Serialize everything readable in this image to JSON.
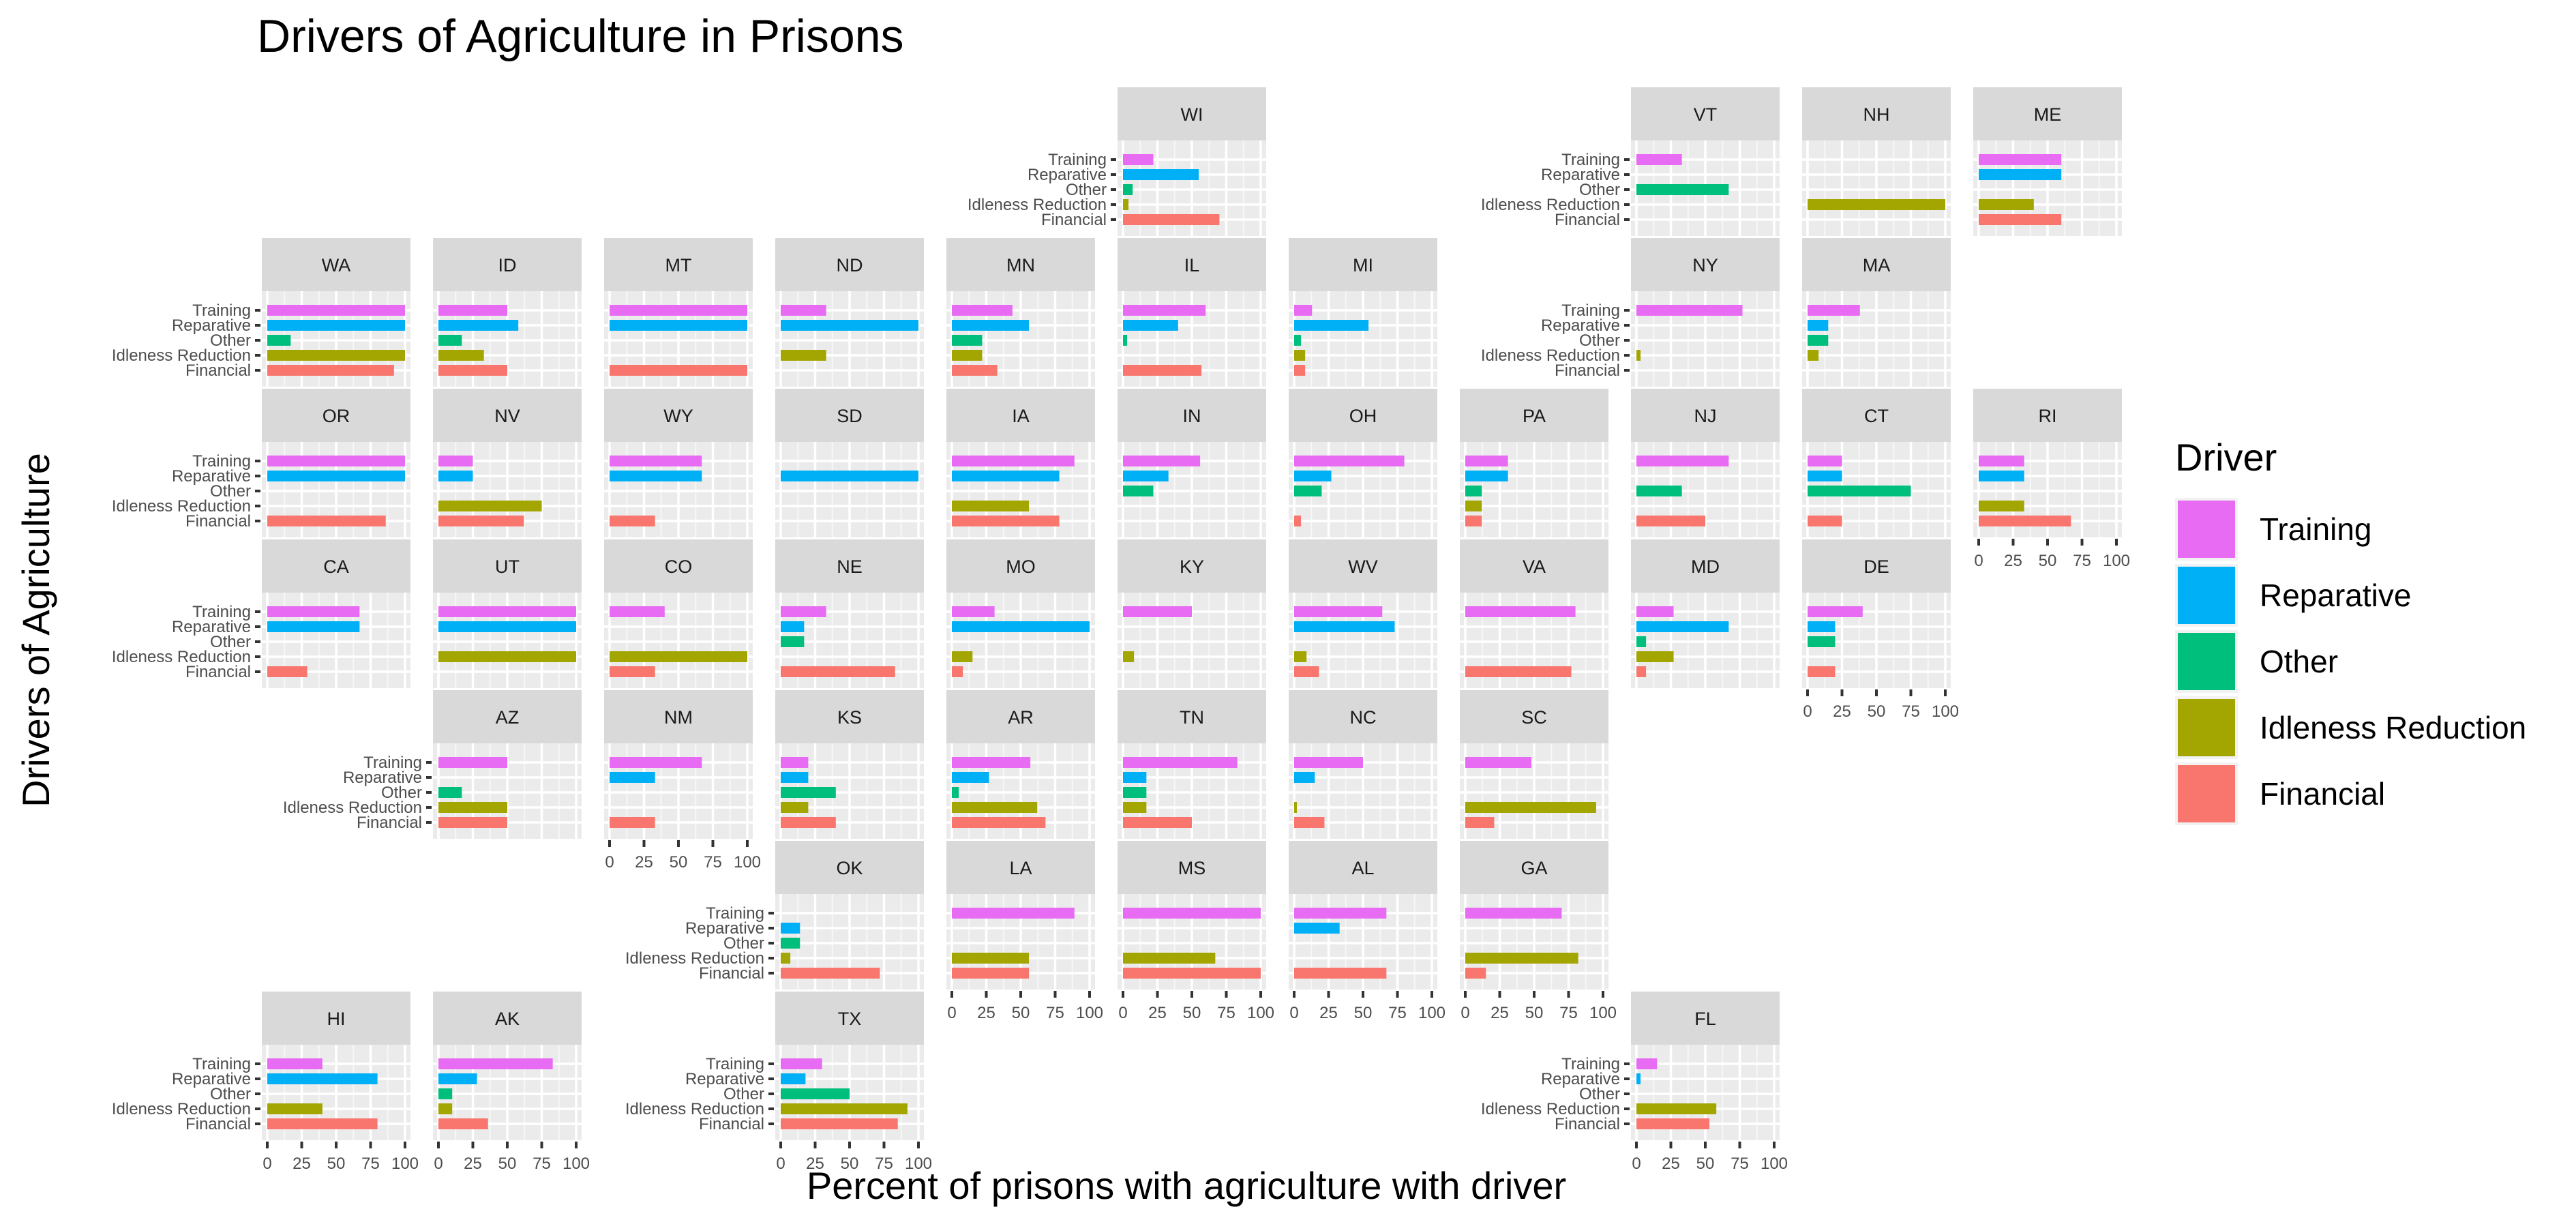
{
  "chart_data": {
    "type": "bar",
    "orientation": "horizontal",
    "layout": "geofacet",
    "title": "Drivers of Agriculture in Prisons",
    "xlabel": "Percent of prisons with agriculture with driver",
    "ylabel": "Drivers of Agriculture",
    "categories": [
      "Training",
      "Reparative",
      "Other",
      "Idleness Reduction",
      "Financial"
    ],
    "xlim": [
      0,
      100
    ],
    "xticks": [
      "0",
      "25",
      "50",
      "75",
      "100"
    ],
    "grid": true,
    "legend": {
      "title": "Driver",
      "position": "right",
      "entries": [
        "Training",
        "Reparative",
        "Other",
        "Idleness Reduction",
        "Financial"
      ]
    },
    "colors": {
      "Training": "#E76BF3",
      "Reparative": "#00B0F6",
      "Other": "#00BF7D",
      "Idleness Reduction": "#A3A500",
      "Financial": "#F8766D"
    },
    "panels": [
      {
        "state": "WI",
        "row": 0,
        "col": 5,
        "values": [
          22,
          55,
          7,
          4,
          70
        ]
      },
      {
        "state": "VT",
        "row": 0,
        "col": 8,
        "values": [
          33,
          0,
          67,
          0,
          0
        ]
      },
      {
        "state": "NH",
        "row": 0,
        "col": 9,
        "values": [
          0,
          0,
          0,
          100,
          0
        ]
      },
      {
        "state": "ME",
        "row": 0,
        "col": 10,
        "values": [
          60,
          60,
          0,
          40,
          60
        ]
      },
      {
        "state": "WA",
        "row": 1,
        "col": 0,
        "values": [
          100,
          100,
          17,
          100,
          92
        ]
      },
      {
        "state": "ID",
        "row": 1,
        "col": 1,
        "values": [
          50,
          58,
          17,
          33,
          50
        ]
      },
      {
        "state": "MT",
        "row": 1,
        "col": 2,
        "values": [
          100,
          100,
          0,
          0,
          100
        ]
      },
      {
        "state": "ND",
        "row": 1,
        "col": 3,
        "values": [
          33,
          100,
          0,
          33,
          0
        ]
      },
      {
        "state": "MN",
        "row": 1,
        "col": 4,
        "values": [
          44,
          56,
          22,
          22,
          33
        ]
      },
      {
        "state": "IL",
        "row": 1,
        "col": 5,
        "values": [
          60,
          40,
          3,
          0,
          57
        ]
      },
      {
        "state": "MI",
        "row": 1,
        "col": 6,
        "values": [
          13,
          54,
          5,
          8,
          8
        ]
      },
      {
        "state": "NY",
        "row": 1,
        "col": 8,
        "values": [
          77,
          0,
          0,
          3,
          0
        ]
      },
      {
        "state": "MA",
        "row": 1,
        "col": 9,
        "values": [
          38,
          15,
          15,
          8,
          0
        ]
      },
      {
        "state": "OR",
        "row": 2,
        "col": 0,
        "values": [
          100,
          100,
          0,
          0,
          86
        ]
      },
      {
        "state": "NV",
        "row": 2,
        "col": 1,
        "values": [
          25,
          25,
          0,
          75,
          62
        ]
      },
      {
        "state": "WY",
        "row": 2,
        "col": 2,
        "values": [
          67,
          67,
          0,
          0,
          33
        ]
      },
      {
        "state": "SD",
        "row": 2,
        "col": 3,
        "values": [
          0,
          100,
          0,
          0,
          0
        ]
      },
      {
        "state": "IA",
        "row": 2,
        "col": 4,
        "values": [
          89,
          78,
          0,
          56,
          78
        ]
      },
      {
        "state": "IN",
        "row": 2,
        "col": 5,
        "values": [
          56,
          33,
          22,
          0,
          0
        ]
      },
      {
        "state": "OH",
        "row": 2,
        "col": 6,
        "values": [
          80,
          27,
          20,
          0,
          5
        ]
      },
      {
        "state": "PA",
        "row": 2,
        "col": 7,
        "values": [
          31,
          31,
          12,
          12,
          12
        ]
      },
      {
        "state": "NJ",
        "row": 2,
        "col": 8,
        "values": [
          67,
          0,
          33,
          0,
          50
        ]
      },
      {
        "state": "CT",
        "row": 2,
        "col": 9,
        "values": [
          25,
          25,
          75,
          0,
          25
        ]
      },
      {
        "state": "RI",
        "row": 2,
        "col": 10,
        "values": [
          33,
          33,
          0,
          33,
          67
        ]
      },
      {
        "state": "CA",
        "row": 3,
        "col": 0,
        "values": [
          67,
          67,
          0,
          0,
          29
        ]
      },
      {
        "state": "UT",
        "row": 3,
        "col": 1,
        "values": [
          100,
          100,
          0,
          100,
          0
        ]
      },
      {
        "state": "CO",
        "row": 3,
        "col": 2,
        "values": [
          40,
          0,
          0,
          100,
          33
        ]
      },
      {
        "state": "NE",
        "row": 3,
        "col": 3,
        "values": [
          33,
          17,
          17,
          0,
          83
        ]
      },
      {
        "state": "MO",
        "row": 3,
        "col": 4,
        "values": [
          31,
          100,
          0,
          15,
          8
        ]
      },
      {
        "state": "KY",
        "row": 3,
        "col": 5,
        "values": [
          50,
          0,
          0,
          8,
          0
        ]
      },
      {
        "state": "WV",
        "row": 3,
        "col": 6,
        "values": [
          64,
          73,
          0,
          9,
          18
        ]
      },
      {
        "state": "VA",
        "row": 3,
        "col": 7,
        "values": [
          80,
          0,
          0,
          0,
          77
        ]
      },
      {
        "state": "MD",
        "row": 3,
        "col": 8,
        "values": [
          27,
          67,
          7,
          27,
          7
        ]
      },
      {
        "state": "DE",
        "row": 3,
        "col": 9,
        "values": [
          40,
          20,
          20,
          0,
          20
        ]
      },
      {
        "state": "AZ",
        "row": 4,
        "col": 1,
        "values": [
          50,
          0,
          17,
          50,
          50
        ]
      },
      {
        "state": "NM",
        "row": 4,
        "col": 2,
        "values": [
          67,
          33,
          0,
          0,
          33
        ]
      },
      {
        "state": "KS",
        "row": 4,
        "col": 3,
        "values": [
          20,
          20,
          40,
          20,
          40
        ]
      },
      {
        "state": "AR",
        "row": 4,
        "col": 4,
        "values": [
          57,
          27,
          5,
          62,
          68
        ]
      },
      {
        "state": "TN",
        "row": 4,
        "col": 5,
        "values": [
          83,
          17,
          17,
          17,
          50
        ]
      },
      {
        "state": "NC",
        "row": 4,
        "col": 6,
        "values": [
          50,
          15,
          0,
          2,
          22
        ]
      },
      {
        "state": "SC",
        "row": 4,
        "col": 7,
        "values": [
          48,
          0,
          0,
          95,
          21
        ]
      },
      {
        "state": "OK",
        "row": 5,
        "col": 3,
        "values": [
          0,
          14,
          14,
          7,
          72
        ]
      },
      {
        "state": "LA",
        "row": 5,
        "col": 4,
        "values": [
          89,
          0,
          0,
          56,
          56
        ]
      },
      {
        "state": "MS",
        "row": 5,
        "col": 5,
        "values": [
          100,
          0,
          0,
          67,
          100
        ]
      },
      {
        "state": "AL",
        "row": 5,
        "col": 6,
        "values": [
          67,
          33,
          0,
          0,
          67
        ]
      },
      {
        "state": "GA",
        "row": 5,
        "col": 7,
        "values": [
          70,
          0,
          0,
          82,
          15
        ]
      },
      {
        "state": "HI",
        "row": 6,
        "col": 0,
        "values": [
          40,
          80,
          0,
          40,
          80
        ]
      },
      {
        "state": "AK",
        "row": 6,
        "col": 1,
        "values": [
          83,
          28,
          10,
          10,
          36
        ]
      },
      {
        "state": "TX",
        "row": 6,
        "col": 3,
        "values": [
          30,
          18,
          50,
          92,
          85
        ]
      },
      {
        "state": "FL",
        "row": 6,
        "col": 8,
        "values": [
          15,
          3,
          0,
          58,
          53
        ]
      }
    ]
  }
}
